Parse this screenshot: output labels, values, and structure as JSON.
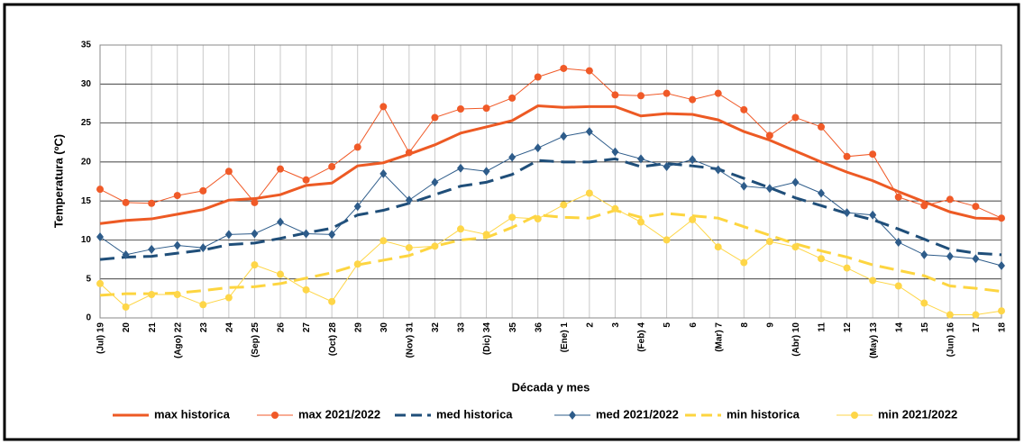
{
  "chart_data": {
    "type": "line",
    "xlabel": "Década y mes",
    "ylabel": "Temperatura (ºC)",
    "categories": [
      "(Jul) 19",
      "20",
      "21",
      "(Ago) 22",
      "23",
      "24",
      "(Sep) 25",
      "26",
      "27",
      "(Oct) 28",
      "29",
      "30",
      "(Nov) 31",
      "32",
      "33",
      "(Dic) 34",
      "35",
      "36",
      "(Ene) 1",
      "2",
      "3",
      "(Feb) 4",
      "5",
      "6",
      "(Mar) 7",
      "8",
      "9",
      "(Abr) 10",
      "11",
      "12",
      "(May) 13",
      "14",
      "15",
      "(Jun) 16",
      "17",
      "18"
    ],
    "ylim": [
      0,
      35
    ],
    "yticks": [
      0,
      5,
      10,
      15,
      20,
      25,
      30,
      35
    ],
    "grid": true,
    "legend": "bottom",
    "series": [
      {
        "name": "max historica",
        "color": "#ed5a24",
        "width": 3,
        "dash": false,
        "values": [
          12.1,
          12.5,
          12.7,
          13.3,
          13.9,
          15.1,
          15.3,
          15.8,
          17.0,
          17.3,
          19.5,
          19.9,
          21.0,
          22.2,
          23.7,
          24.5,
          25.3,
          27.2,
          27.0,
          27.1,
          27.1,
          25.9,
          26.2,
          26.1,
          25.4,
          23.9,
          22.8,
          21.4,
          20.0,
          18.7,
          17.6,
          16.2,
          14.9,
          13.6,
          12.8,
          12.7
        ]
      },
      {
        "name": "max 2021/2022",
        "color": "#f05a28",
        "width": 1,
        "dash": false,
        "marker": "circle",
        "values": [
          16.5,
          14.8,
          14.7,
          15.7,
          16.3,
          18.8,
          14.8,
          19.1,
          17.7,
          19.4,
          21.9,
          27.1,
          21.2,
          25.7,
          26.8,
          26.9,
          28.2,
          30.9,
          32.0,
          31.7,
          28.6,
          28.5,
          28.8,
          28.0,
          28.8,
          26.7,
          23.4,
          25.7,
          24.5,
          20.7,
          21.0,
          15.5,
          14.4,
          15.2,
          14.3,
          12.8
        ]
      },
      {
        "name": "med historica",
        "color": "#1f4e79",
        "width": 3,
        "dash": true,
        "values": [
          7.5,
          7.8,
          7.9,
          8.3,
          8.7,
          9.4,
          9.6,
          10.2,
          10.9,
          11.5,
          13.2,
          13.8,
          14.7,
          15.8,
          16.9,
          17.4,
          18.4,
          20.2,
          20.0,
          20.0,
          20.4,
          19.4,
          19.8,
          19.5,
          19.1,
          17.9,
          16.7,
          15.4,
          14.4,
          13.4,
          12.6,
          11.4,
          10.1,
          8.8,
          8.3,
          8.1
        ]
      },
      {
        "name": "med 2021/2022",
        "color": "#2e5c8a",
        "width": 1,
        "dash": false,
        "marker": "diamond",
        "values": [
          10.4,
          8.1,
          8.8,
          9.3,
          9.0,
          10.7,
          10.8,
          12.3,
          10.8,
          10.7,
          14.3,
          18.5,
          15.1,
          17.4,
          19.2,
          18.8,
          20.6,
          21.8,
          23.3,
          23.9,
          21.3,
          20.4,
          19.4,
          20.3,
          19.0,
          16.9,
          16.6,
          17.4,
          16.0,
          13.5,
          13.2,
          9.7,
          8.1,
          7.9,
          7.6,
          6.7
        ]
      },
      {
        "name": "min historica",
        "color": "#fdd540",
        "width": 3,
        "dash": true,
        "values": [
          2.9,
          3.1,
          3.1,
          3.2,
          3.5,
          3.9,
          4.0,
          4.4,
          5.1,
          5.8,
          6.8,
          7.4,
          8.0,
          9.2,
          10.0,
          10.3,
          11.6,
          13.2,
          12.9,
          12.8,
          13.8,
          12.9,
          13.4,
          13.1,
          12.8,
          11.7,
          10.6,
          9.5,
          8.6,
          7.8,
          6.8,
          6.1,
          5.4,
          4.1,
          3.8,
          3.4
        ]
      },
      {
        "name": "min 2021/2022",
        "color": "#fed648",
        "width": 1,
        "dash": false,
        "marker": "circle",
        "values": [
          4.4,
          1.4,
          3.0,
          3.0,
          1.7,
          2.6,
          6.8,
          5.6,
          3.6,
          2.1,
          6.9,
          9.9,
          9.0,
          9.2,
          11.4,
          10.7,
          12.9,
          12.7,
          14.5,
          16.0,
          14.0,
          12.3,
          10.0,
          12.6,
          9.1,
          7.1,
          9.8,
          9.1,
          7.6,
          6.4,
          4.8,
          4.1,
          1.9,
          0.4,
          0.4,
          0.9
        ]
      }
    ]
  }
}
